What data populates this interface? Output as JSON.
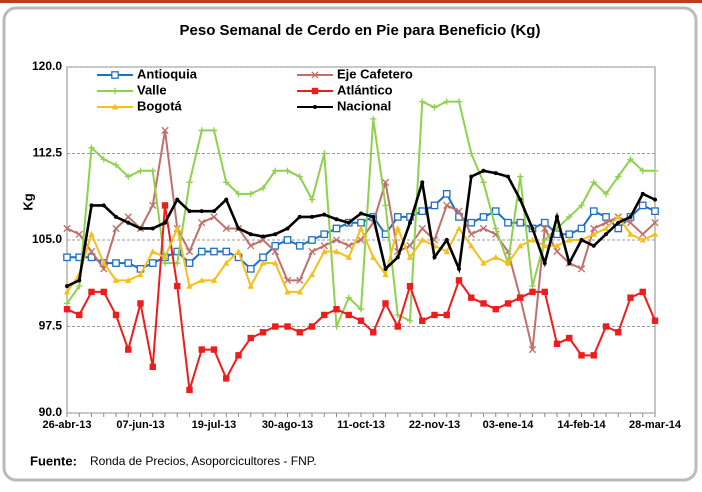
{
  "chart_data": {
    "type": "line",
    "title": "Peso Semanal de Cerdo en Pie para Beneficio (Kg)",
    "y_label": "Kg",
    "source_label": "Fuente:",
    "source_text": "Ronda de Precios, Asoporcicultores  - FNP.",
    "categories": [
      "26-abr-13",
      null,
      null,
      null,
      null,
      null,
      "07-jun-13",
      null,
      null,
      null,
      null,
      null,
      "19-jul-13",
      null,
      null,
      null,
      null,
      null,
      "30-ago-13",
      null,
      null,
      null,
      null,
      null,
      "11-oct-13",
      null,
      null,
      null,
      null,
      null,
      "22-nov-13",
      null,
      null,
      null,
      null,
      null,
      "03-ene-14",
      null,
      null,
      null,
      null,
      null,
      "14-feb-14",
      null,
      null,
      null,
      null,
      null,
      "28-mar-14"
    ],
    "ylim": [
      90,
      120
    ],
    "yticks": [
      {
        "value": 90,
        "label": "90.0"
      },
      97.5,
      {
        "value": 105,
        "label": "105.0"
      },
      112.5,
      {
        "value": 120,
        "label": "120.0"
      }
    ],
    "grid": true,
    "legend": "top-left",
    "series": [
      {
        "name": "Antioquia",
        "color": "#1f6fc5",
        "marker": "square-open",
        "values": [
          103.5,
          103.5,
          103.5,
          103.0,
          103.0,
          103.0,
          102.5,
          103.0,
          103.5,
          104.0,
          103.0,
          104.0,
          104.0,
          104.0,
          103.5,
          102.5,
          103.5,
          104.5,
          105.0,
          104.5,
          105.0,
          105.5,
          106.0,
          106.5,
          106.5,
          107.0,
          105.5,
          107.0,
          107.0,
          107.5,
          108.0,
          109.0,
          107.0,
          106.5,
          107.0,
          107.5,
          106.5,
          106.5,
          106.0,
          106.5,
          105.5,
          105.5,
          106.0,
          107.5,
          107.0,
          106.0,
          107.0,
          108.0,
          107.5
        ]
      },
      {
        "name": "Eje Cafetero",
        "color": "#c0706a",
        "marker": "x",
        "values": [
          106.0,
          105.5,
          104.0,
          102.5,
          106.0,
          107.0,
          106.0,
          108.0,
          114.5,
          106.0,
          104.0,
          106.5,
          107.0,
          106.0,
          106.0,
          104.5,
          105.0,
          104.0,
          101.5,
          101.5,
          104.0,
          104.5,
          105.0,
          104.5,
          105.0,
          106.5,
          110.0,
          104.0,
          104.5,
          106.0,
          105.0,
          108.0,
          107.5,
          105.5,
          106.0,
          105.5,
          104.0,
          100.0,
          95.5,
          106.0,
          104.0,
          103.0,
          102.5,
          106.0,
          106.5,
          107.0,
          106.5,
          105.5,
          106.5
        ]
      },
      {
        "name": "Valle",
        "color": "#8fd14f",
        "marker": "plus",
        "values": [
          99.5,
          101.0,
          113.0,
          112.0,
          111.5,
          110.5,
          111.0,
          111.0,
          103.0,
          103.0,
          110.0,
          114.5,
          114.5,
          110.0,
          109.0,
          109.0,
          109.5,
          111.0,
          111.0,
          110.5,
          108.5,
          112.5,
          97.5,
          100.0,
          99.0,
          115.5,
          108.0,
          98.5,
          98.0,
          117.0,
          116.5,
          117.0,
          117.0,
          112.5,
          110.0,
          106.0,
          103.0,
          110.5,
          101.0,
          105.0,
          106.0,
          107.0,
          108.0,
          110.0,
          109.0,
          110.5,
          112.0,
          111.0,
          111.0
        ]
      },
      {
        "name": "Atlántico",
        "color": "#ee1c1c",
        "marker": "square",
        "values": [
          99.0,
          98.5,
          100.5,
          100.5,
          98.5,
          95.5,
          99.5,
          94.0,
          108.0,
          101.0,
          92.0,
          95.5,
          95.5,
          93.0,
          95.0,
          96.5,
          97.0,
          97.5,
          97.5,
          97.0,
          97.5,
          98.5,
          99.0,
          98.5,
          98.0,
          97.0,
          99.5,
          97.5,
          101.0,
          98.0,
          98.5,
          98.5,
          101.5,
          100.0,
          99.5,
          99.0,
          99.5,
          100.0,
          100.5,
          100.5,
          96.0,
          96.5,
          95.0,
          95.0,
          97.5,
          97.0,
          100.0,
          100.5,
          98.0
        ]
      },
      {
        "name": "Bogotá",
        "color": "#f5bf1c",
        "marker": "triangle",
        "values": [
          100.5,
          102.0,
          105.5,
          103.0,
          101.5,
          101.5,
          102.0,
          104.0,
          103.5,
          106.0,
          101.0,
          101.5,
          101.5,
          103.0,
          104.0,
          101.0,
          103.0,
          103.0,
          100.5,
          100.5,
          102.0,
          104.0,
          104.0,
          103.5,
          106.0,
          103.5,
          102.0,
          106.0,
          103.5,
          105.0,
          104.5,
          104.0,
          106.0,
          104.5,
          103.0,
          103.5,
          103.0,
          104.5,
          105.0,
          104.5,
          104.5,
          105.0,
          105.0,
          105.5,
          106.0,
          107.0,
          105.5,
          105.0,
          105.5
        ]
      },
      {
        "name": "Nacional",
        "color": "#000000",
        "marker": "dot",
        "values": [
          101.0,
          101.5,
          108.0,
          108.0,
          107.0,
          106.5,
          106.0,
          106.0,
          106.5,
          108.5,
          107.5,
          107.5,
          107.5,
          108.5,
          106.0,
          105.5,
          105.3,
          105.5,
          106.0,
          107.0,
          107.0,
          107.2,
          106.8,
          106.5,
          107.3,
          107.0,
          102.5,
          103.5,
          106.5,
          110.0,
          103.5,
          105.0,
          102.5,
          110.5,
          111.0,
          110.8,
          110.5,
          108.5,
          106.0,
          103.0,
          107.0,
          103.0,
          105.0,
          104.5,
          105.5,
          106.5,
          107.0,
          109.0,
          108.5
        ]
      }
    ]
  }
}
